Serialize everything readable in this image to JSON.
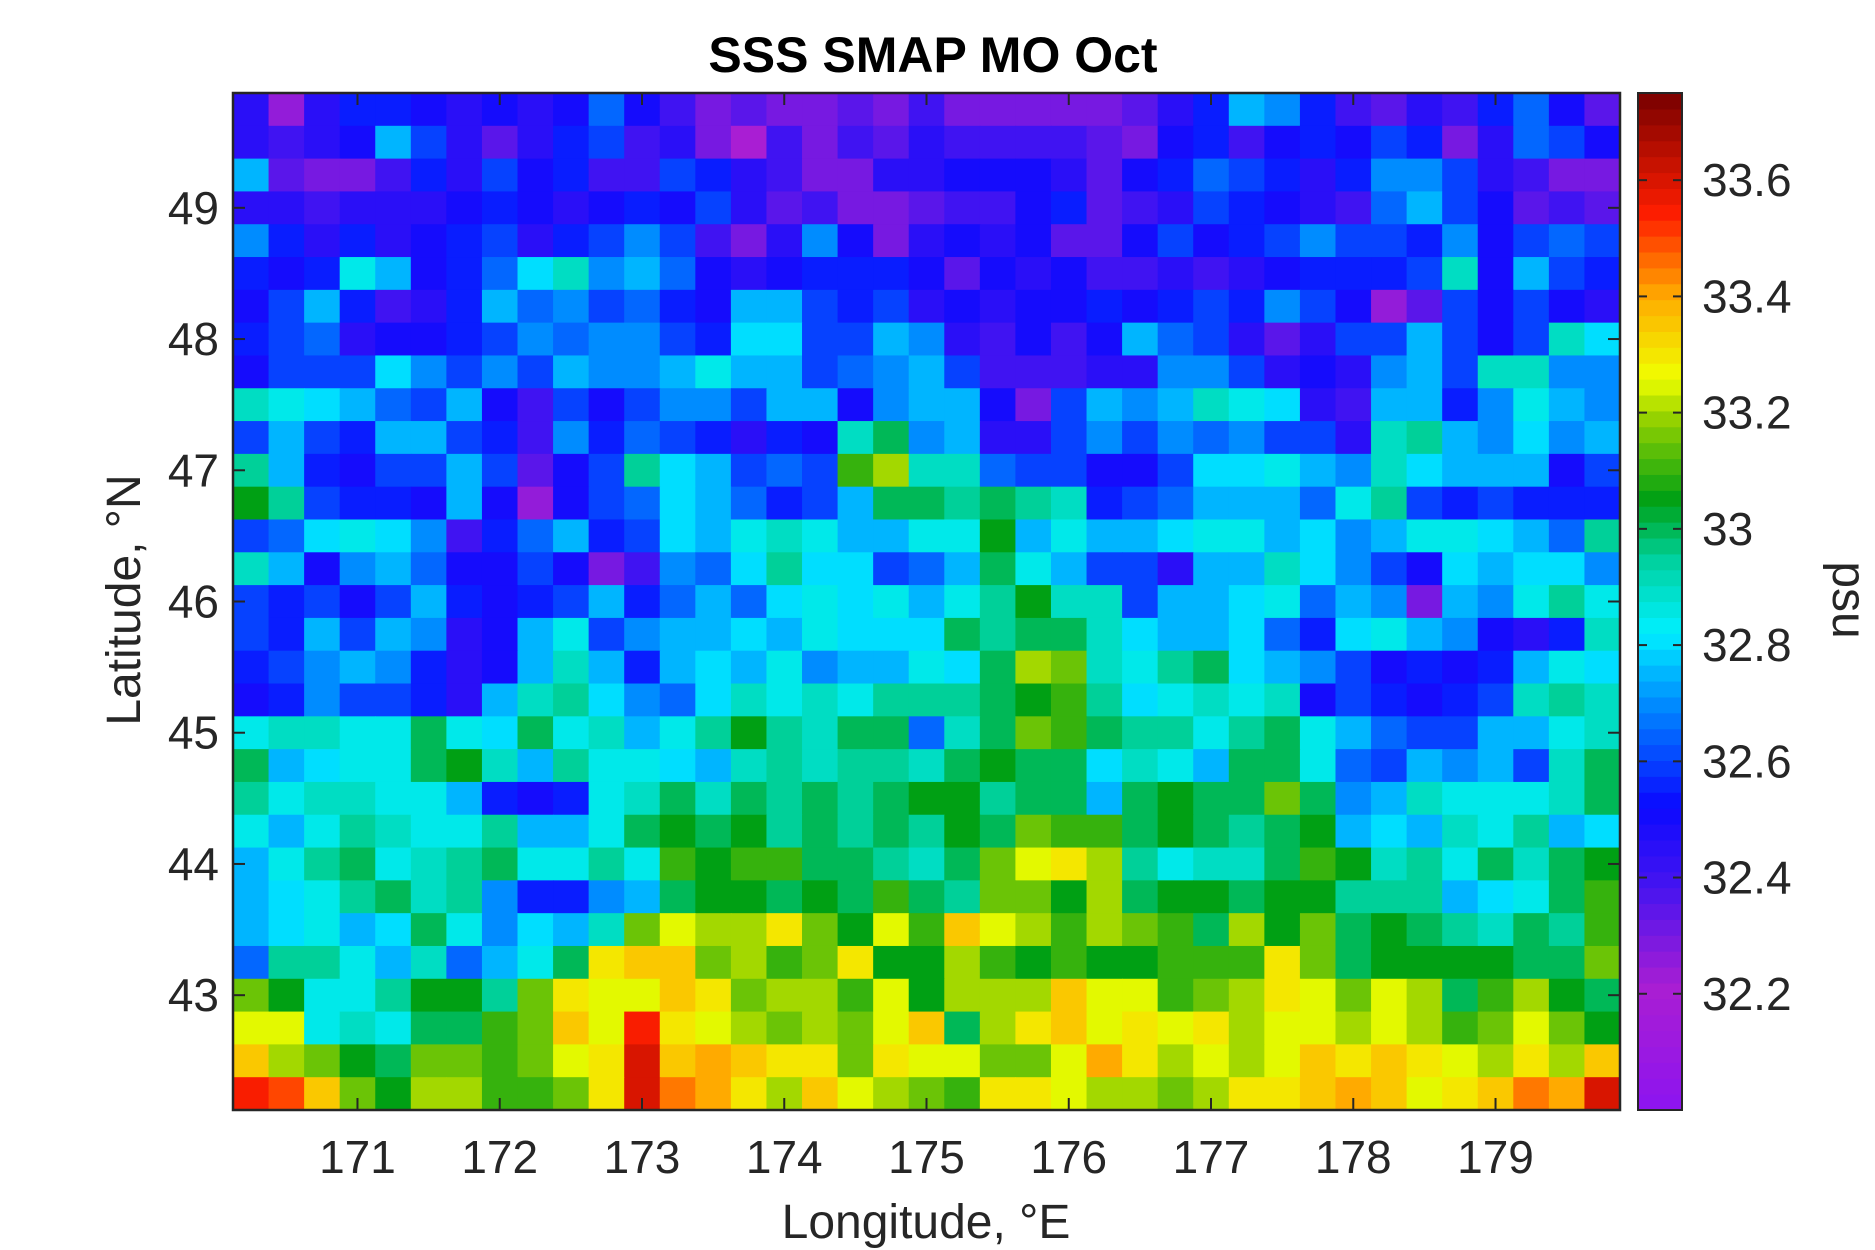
{
  "chart_data": {
    "type": "heatmap",
    "title": "SSS SMAP MO Oct",
    "xlabel": "Longitude, °E",
    "ylabel": "Latitude, °N",
    "colorbar_label": "psu",
    "colormap": "jet-like (purple → blue → cyan → green → yellow → red → dark red)",
    "xlim": [
      170.125,
      179.875
    ],
    "ylim": [
      42.125,
      49.875
    ],
    "clim": [
      32.0,
      33.75
    ],
    "cell_size_deg": 0.25,
    "xticks": [
      "171",
      "172",
      "173",
      "174",
      "175",
      "176",
      "177",
      "178",
      "179"
    ],
    "yticks": [
      "43",
      "44",
      "45",
      "46",
      "47",
      "48",
      "49"
    ],
    "cticks": [
      "32.2",
      "32.4",
      "32.6",
      "32.8",
      "33",
      "33.2",
      "33.4",
      "33.6"
    ],
    "x": [
      170.25,
      170.5,
      170.75,
      171.0,
      171.25,
      171.5,
      171.75,
      172.0,
      172.25,
      172.5,
      172.75,
      173.0,
      173.25,
      173.5,
      173.75,
      174.0,
      174.25,
      174.5,
      174.75,
      175.0,
      175.25,
      175.5,
      175.75,
      176.0,
      176.25,
      176.5,
      176.75,
      177.0,
      177.25,
      177.5,
      177.75,
      178.0,
      178.25,
      178.5,
      178.75,
      179.0,
      179.25,
      179.5,
      179.75
    ],
    "y": [
      49.75,
      49.5,
      49.25,
      49.0,
      48.75,
      48.5,
      48.25,
      48.0,
      47.75,
      47.5,
      47.25,
      47.0,
      46.75,
      46.5,
      46.25,
      46.0,
      45.75,
      45.5,
      45.25,
      45.0,
      44.75,
      44.5,
      44.25,
      44.0,
      43.75,
      43.5,
      43.25,
      43.0,
      42.75,
      42.5,
      42.25
    ],
    "z_note": "rows ordered north to south, columns west to east; values in psu",
    "z": [
      [
        32.45,
        32.25,
        32.45,
        32.55,
        32.55,
        32.5,
        32.45,
        32.5,
        32.45,
        32.5,
        32.65,
        32.5,
        32.4,
        32.3,
        32.35,
        32.3,
        32.3,
        32.35,
        32.3,
        32.4,
        32.3,
        32.3,
        32.3,
        32.3,
        32.3,
        32.35,
        32.45,
        32.55,
        32.75,
        32.7,
        32.55,
        32.4,
        32.35,
        32.45,
        32.4,
        32.55,
        32.65,
        32.5,
        32.35
      ],
      [
        32.45,
        32.4,
        32.45,
        32.5,
        32.75,
        32.6,
        32.45,
        32.35,
        32.45,
        32.55,
        32.6,
        32.4,
        32.45,
        32.3,
        32.2,
        32.4,
        32.3,
        32.4,
        32.35,
        32.45,
        32.4,
        32.4,
        32.4,
        32.4,
        32.35,
        32.3,
        32.5,
        32.55,
        32.4,
        32.5,
        32.55,
        32.5,
        32.6,
        32.55,
        32.3,
        32.45,
        32.65,
        32.6,
        32.5
      ],
      [
        32.75,
        32.35,
        32.3,
        32.3,
        32.4,
        32.55,
        32.45,
        32.6,
        32.5,
        32.55,
        32.4,
        32.4,
        32.6,
        32.55,
        32.45,
        32.4,
        32.3,
        32.3,
        32.45,
        32.45,
        32.5,
        32.5,
        32.5,
        32.45,
        32.35,
        32.5,
        32.55,
        32.65,
        32.6,
        32.55,
        32.45,
        32.55,
        32.7,
        32.7,
        32.6,
        32.45,
        32.4,
        32.3,
        32.3
      ],
      [
        32.45,
        32.45,
        32.4,
        32.45,
        32.45,
        32.45,
        32.5,
        32.55,
        32.5,
        32.45,
        32.5,
        32.55,
        32.5,
        32.6,
        32.45,
        32.35,
        32.4,
        32.3,
        32.3,
        32.35,
        32.4,
        32.4,
        32.5,
        32.55,
        32.35,
        32.4,
        32.45,
        32.6,
        32.55,
        32.5,
        32.45,
        32.4,
        32.65,
        32.75,
        32.6,
        32.5,
        32.35,
        32.4,
        32.35
      ],
      [
        32.7,
        32.55,
        32.45,
        32.55,
        32.45,
        32.5,
        32.55,
        32.6,
        32.45,
        32.55,
        32.6,
        32.7,
        32.6,
        32.4,
        32.3,
        32.45,
        32.7,
        32.5,
        32.3,
        32.45,
        32.5,
        32.45,
        32.5,
        32.35,
        32.35,
        32.5,
        32.6,
        32.5,
        32.55,
        32.6,
        32.7,
        32.6,
        32.6,
        32.55,
        32.7,
        32.5,
        32.6,
        32.65,
        32.6
      ],
      [
        32.55,
        32.5,
        32.55,
        32.85,
        32.75,
        32.5,
        32.55,
        32.65,
        32.8,
        32.9,
        32.7,
        32.75,
        32.65,
        32.5,
        32.45,
        32.5,
        32.55,
        32.55,
        32.55,
        32.5,
        32.35,
        32.5,
        32.45,
        32.5,
        32.4,
        32.4,
        32.45,
        32.4,
        32.45,
        32.5,
        32.55,
        32.55,
        32.55,
        32.6,
        32.9,
        32.5,
        32.75,
        32.6,
        32.55
      ],
      [
        32.5,
        32.6,
        32.75,
        32.55,
        32.4,
        32.45,
        32.55,
        32.75,
        32.65,
        32.7,
        32.6,
        32.65,
        32.55,
        32.5,
        32.75,
        32.75,
        32.6,
        32.55,
        32.6,
        32.45,
        32.5,
        32.45,
        32.5,
        32.5,
        32.55,
        32.5,
        32.55,
        32.6,
        32.55,
        32.7,
        32.6,
        32.5,
        32.25,
        32.35,
        32.6,
        32.5,
        32.6,
        32.5,
        32.45
      ],
      [
        32.55,
        32.6,
        32.65,
        32.45,
        32.5,
        32.5,
        32.55,
        32.6,
        32.7,
        32.65,
        32.7,
        32.7,
        32.6,
        32.55,
        32.8,
        32.8,
        32.6,
        32.6,
        32.75,
        32.7,
        32.45,
        32.4,
        32.5,
        32.4,
        32.5,
        32.75,
        32.65,
        32.6,
        32.45,
        32.35,
        32.45,
        32.6,
        32.6,
        32.75,
        32.6,
        32.5,
        32.6,
        32.9,
        32.8
      ],
      [
        32.5,
        32.6,
        32.6,
        32.6,
        32.8,
        32.7,
        32.6,
        32.7,
        32.6,
        32.75,
        32.7,
        32.7,
        32.75,
        32.85,
        32.75,
        32.75,
        32.6,
        32.65,
        32.7,
        32.75,
        32.6,
        32.4,
        32.4,
        32.4,
        32.45,
        32.45,
        32.7,
        32.7,
        32.6,
        32.45,
        32.5,
        32.45,
        32.7,
        32.75,
        32.6,
        32.9,
        32.9,
        32.7,
        32.7
      ],
      [
        32.9,
        32.85,
        32.8,
        32.75,
        32.65,
        32.6,
        32.75,
        32.5,
        32.4,
        32.6,
        32.5,
        32.6,
        32.7,
        32.7,
        32.6,
        32.75,
        32.75,
        32.5,
        32.7,
        32.75,
        32.75,
        32.5,
        32.3,
        32.6,
        32.75,
        32.7,
        32.75,
        32.9,
        32.85,
        32.8,
        32.45,
        32.4,
        32.75,
        32.75,
        32.55,
        32.7,
        32.85,
        32.75,
        32.7
      ],
      [
        32.6,
        32.75,
        32.6,
        32.55,
        32.75,
        32.75,
        32.6,
        32.55,
        32.4,
        32.7,
        32.55,
        32.65,
        32.6,
        32.55,
        32.45,
        32.55,
        32.5,
        32.9,
        33.0,
        32.7,
        32.75,
        32.45,
        32.45,
        32.6,
        32.7,
        32.6,
        32.7,
        32.65,
        32.7,
        32.6,
        32.6,
        32.45,
        32.9,
        32.95,
        32.75,
        32.7,
        32.8,
        32.7,
        32.75
      ],
      [
        32.95,
        32.75,
        32.55,
        32.5,
        32.6,
        32.6,
        32.75,
        32.6,
        32.35,
        32.5,
        32.6,
        32.95,
        32.8,
        32.75,
        32.6,
        32.65,
        32.6,
        33.1,
        33.2,
        32.9,
        32.9,
        32.65,
        32.6,
        32.6,
        32.5,
        32.5,
        32.6,
        32.8,
        32.8,
        32.85,
        32.75,
        32.7,
        32.9,
        32.8,
        32.75,
        32.75,
        32.75,
        32.5,
        32.6
      ],
      [
        33.05,
        32.95,
        32.6,
        32.55,
        32.55,
        32.5,
        32.75,
        32.5,
        32.25,
        32.5,
        32.6,
        32.65,
        32.8,
        32.75,
        32.65,
        32.55,
        32.6,
        32.75,
        33.0,
        33.0,
        32.95,
        33.0,
        32.95,
        32.9,
        32.55,
        32.6,
        32.65,
        32.75,
        32.75,
        32.75,
        32.65,
        32.85,
        32.95,
        32.6,
        32.55,
        32.6,
        32.55,
        32.55,
        32.55
      ],
      [
        32.6,
        32.65,
        32.8,
        32.85,
        32.8,
        32.7,
        32.4,
        32.55,
        32.65,
        32.75,
        32.55,
        32.6,
        32.8,
        32.75,
        32.85,
        32.9,
        32.85,
        32.75,
        32.75,
        32.85,
        32.85,
        33.05,
        32.75,
        32.85,
        32.75,
        32.75,
        32.8,
        32.85,
        32.85,
        32.75,
        32.8,
        32.7,
        32.75,
        32.85,
        32.85,
        32.8,
        32.75,
        32.65,
        32.95
      ],
      [
        32.9,
        32.75,
        32.5,
        32.7,
        32.75,
        32.65,
        32.5,
        32.5,
        32.6,
        32.5,
        32.3,
        32.4,
        32.7,
        32.65,
        32.8,
        32.95,
        32.8,
        32.8,
        32.6,
        32.65,
        32.75,
        33.0,
        32.85,
        32.75,
        32.6,
        32.6,
        32.45,
        32.75,
        32.75,
        32.9,
        32.8,
        32.7,
        32.6,
        32.5,
        32.8,
        32.75,
        32.8,
        32.8,
        32.7
      ],
      [
        32.6,
        32.55,
        32.6,
        32.5,
        32.6,
        32.75,
        32.55,
        32.5,
        32.55,
        32.6,
        32.75,
        32.55,
        32.65,
        32.75,
        32.65,
        32.8,
        32.85,
        32.8,
        32.85,
        32.75,
        32.85,
        32.95,
        33.05,
        32.9,
        32.9,
        32.6,
        32.75,
        32.75,
        32.8,
        32.85,
        32.65,
        32.75,
        32.7,
        32.3,
        32.75,
        32.7,
        32.85,
        32.95,
        32.85
      ],
      [
        32.6,
        32.55,
        32.75,
        32.6,
        32.75,
        32.7,
        32.45,
        32.5,
        32.75,
        32.85,
        32.6,
        32.7,
        32.75,
        32.75,
        32.8,
        32.75,
        32.85,
        32.8,
        32.8,
        32.8,
        33.0,
        32.95,
        33.0,
        33.0,
        32.9,
        32.8,
        32.75,
        32.75,
        32.8,
        32.65,
        32.55,
        32.8,
        32.85,
        32.75,
        32.7,
        32.5,
        32.45,
        32.55,
        32.9
      ],
      [
        32.55,
        32.6,
        32.7,
        32.75,
        32.7,
        32.55,
        32.45,
        32.5,
        32.75,
        32.9,
        32.75,
        32.55,
        32.75,
        32.8,
        32.75,
        32.85,
        32.7,
        32.75,
        32.75,
        32.85,
        32.8,
        33.0,
        33.2,
        33.15,
        32.9,
        32.85,
        32.95,
        33.0,
        32.8,
        32.75,
        32.7,
        32.6,
        32.5,
        32.55,
        32.5,
        32.55,
        32.75,
        32.85,
        32.8
      ],
      [
        32.5,
        32.55,
        32.7,
        32.6,
        32.6,
        32.55,
        32.45,
        32.75,
        32.9,
        32.95,
        32.8,
        32.7,
        32.65,
        32.8,
        32.9,
        32.85,
        32.9,
        32.85,
        32.95,
        32.95,
        32.95,
        33.0,
        33.05,
        33.1,
        32.95,
        32.8,
        32.85,
        32.9,
        32.85,
        32.9,
        32.5,
        32.6,
        32.55,
        32.5,
        32.55,
        32.6,
        32.9,
        32.95,
        32.9
      ],
      [
        32.85,
        32.9,
        32.9,
        32.85,
        32.85,
        33.0,
        32.85,
        32.8,
        33.0,
        32.85,
        32.9,
        32.75,
        32.85,
        32.95,
        33.05,
        32.95,
        32.9,
        33.0,
        33.0,
        32.65,
        32.9,
        33.0,
        33.15,
        33.1,
        33.0,
        32.95,
        32.95,
        32.85,
        32.95,
        33.0,
        32.85,
        32.75,
        32.65,
        32.6,
        32.6,
        32.75,
        32.75,
        32.85,
        32.9
      ],
      [
        33.0,
        32.75,
        32.8,
        32.85,
        32.85,
        33.0,
        33.05,
        32.9,
        32.75,
        32.95,
        32.85,
        32.85,
        32.8,
        32.75,
        32.9,
        32.95,
        32.9,
        32.95,
        32.95,
        32.9,
        33.0,
        33.05,
        33.0,
        33.0,
        32.8,
        32.9,
        32.85,
        32.75,
        33.0,
        33.0,
        32.85,
        32.65,
        32.6,
        32.75,
        32.7,
        32.75,
        32.6,
        32.9,
        33.0
      ],
      [
        32.95,
        32.85,
        32.9,
        32.9,
        32.85,
        32.85,
        32.75,
        32.55,
        32.5,
        32.55,
        32.85,
        32.9,
        33.0,
        32.9,
        33.0,
        32.95,
        33.0,
        32.95,
        33.0,
        33.05,
        33.05,
        32.95,
        33.0,
        33.0,
        32.75,
        33.0,
        33.05,
        33.0,
        33.0,
        33.15,
        33.0,
        32.7,
        32.75,
        32.9,
        32.85,
        32.85,
        32.85,
        32.9,
        33.0
      ],
      [
        32.85,
        32.75,
        32.85,
        32.95,
        32.9,
        32.85,
        32.85,
        32.95,
        32.75,
        32.75,
        32.85,
        33.0,
        33.05,
        33.0,
        33.05,
        32.95,
        33.0,
        32.95,
        33.0,
        32.95,
        33.05,
        33.0,
        33.15,
        33.1,
        33.1,
        33.0,
        33.05,
        33.0,
        32.95,
        33.0,
        33.05,
        32.75,
        32.8,
        32.75,
        32.9,
        32.85,
        32.95,
        32.75,
        32.8
      ],
      [
        32.75,
        32.85,
        32.95,
        33.0,
        32.85,
        32.9,
        32.95,
        33.0,
        32.85,
        32.85,
        32.95,
        32.85,
        33.1,
        33.05,
        33.1,
        33.1,
        33.0,
        33.0,
        32.95,
        32.9,
        33.0,
        33.15,
        33.25,
        33.3,
        33.2,
        32.95,
        32.85,
        32.9,
        32.9,
        33.0,
        33.1,
        33.05,
        32.9,
        32.95,
        32.85,
        33.0,
        32.9,
        33.0,
        33.05
      ],
      [
        32.75,
        32.8,
        32.85,
        32.95,
        33.0,
        32.9,
        32.95,
        32.7,
        32.55,
        32.55,
        32.7,
        32.75,
        33.0,
        33.05,
        33.05,
        33.0,
        33.05,
        33.0,
        33.1,
        33.0,
        32.95,
        33.15,
        33.15,
        33.05,
        33.2,
        33.0,
        33.05,
        33.05,
        33.0,
        33.05,
        33.05,
        32.95,
        32.95,
        32.95,
        32.75,
        32.8,
        32.85,
        33.0,
        33.1
      ],
      [
        32.75,
        32.8,
        32.85,
        32.75,
        32.8,
        33.0,
        32.85,
        32.7,
        32.8,
        32.75,
        32.9,
        33.15,
        33.25,
        33.2,
        33.2,
        33.3,
        33.15,
        33.05,
        33.25,
        33.1,
        33.35,
        33.25,
        33.2,
        33.1,
        33.2,
        33.15,
        33.1,
        33.0,
        33.2,
        33.05,
        33.15,
        33.0,
        33.05,
        33.0,
        32.95,
        32.9,
        33.0,
        32.95,
        33.1
      ],
      [
        32.65,
        32.95,
        32.95,
        32.85,
        32.75,
        32.9,
        32.65,
        32.75,
        32.85,
        33.0,
        33.3,
        33.35,
        33.35,
        33.15,
        33.2,
        33.1,
        33.15,
        33.3,
        33.05,
        33.05,
        33.2,
        33.1,
        33.05,
        33.1,
        33.05,
        33.05,
        33.1,
        33.1,
        33.1,
        33.3,
        33.15,
        33.0,
        33.05,
        33.05,
        33.05,
        33.05,
        33.0,
        33.0,
        33.15
      ],
      [
        33.15,
        33.05,
        32.85,
        32.85,
        32.95,
        33.05,
        33.05,
        32.95,
        33.15,
        33.3,
        33.25,
        33.25,
        33.35,
        33.3,
        33.15,
        33.2,
        33.2,
        33.1,
        33.25,
        33.05,
        33.2,
        33.2,
        33.2,
        33.35,
        33.25,
        33.25,
        33.1,
        33.15,
        33.2,
        33.3,
        33.25,
        33.15,
        33.25,
        33.2,
        33.0,
        33.1,
        33.2,
        33.05,
        33.0
      ],
      [
        33.25,
        33.25,
        32.85,
        32.9,
        32.85,
        33.0,
        33.0,
        33.1,
        33.15,
        33.35,
        33.25,
        33.55,
        33.3,
        33.25,
        33.2,
        33.15,
        33.2,
        33.15,
        33.25,
        33.35,
        33.0,
        33.2,
        33.3,
        33.35,
        33.25,
        33.3,
        33.25,
        33.3,
        33.2,
        33.25,
        33.25,
        33.2,
        33.25,
        33.2,
        33.1,
        33.15,
        33.25,
        33.15,
        33.05
      ],
      [
        33.35,
        33.2,
        33.15,
        33.05,
        33.0,
        33.15,
        33.15,
        33.1,
        33.15,
        33.25,
        33.3,
        33.6,
        33.35,
        33.4,
        33.35,
        33.3,
        33.3,
        33.15,
        33.3,
        33.25,
        33.25,
        33.15,
        33.15,
        33.25,
        33.4,
        33.3,
        33.2,
        33.25,
        33.2,
        33.25,
        33.35,
        33.3,
        33.35,
        33.3,
        33.25,
        33.2,
        33.3,
        33.2,
        33.35
      ],
      [
        33.55,
        33.5,
        33.35,
        33.15,
        33.05,
        33.2,
        33.2,
        33.1,
        33.1,
        33.15,
        33.3,
        33.6,
        33.45,
        33.4,
        33.3,
        33.2,
        33.35,
        33.25,
        33.2,
        33.15,
        33.1,
        33.3,
        33.3,
        33.25,
        33.2,
        33.2,
        33.15,
        33.2,
        33.3,
        33.3,
        33.35,
        33.4,
        33.35,
        33.25,
        33.3,
        33.35,
        33.45,
        33.4,
        33.6
      ]
    ]
  }
}
